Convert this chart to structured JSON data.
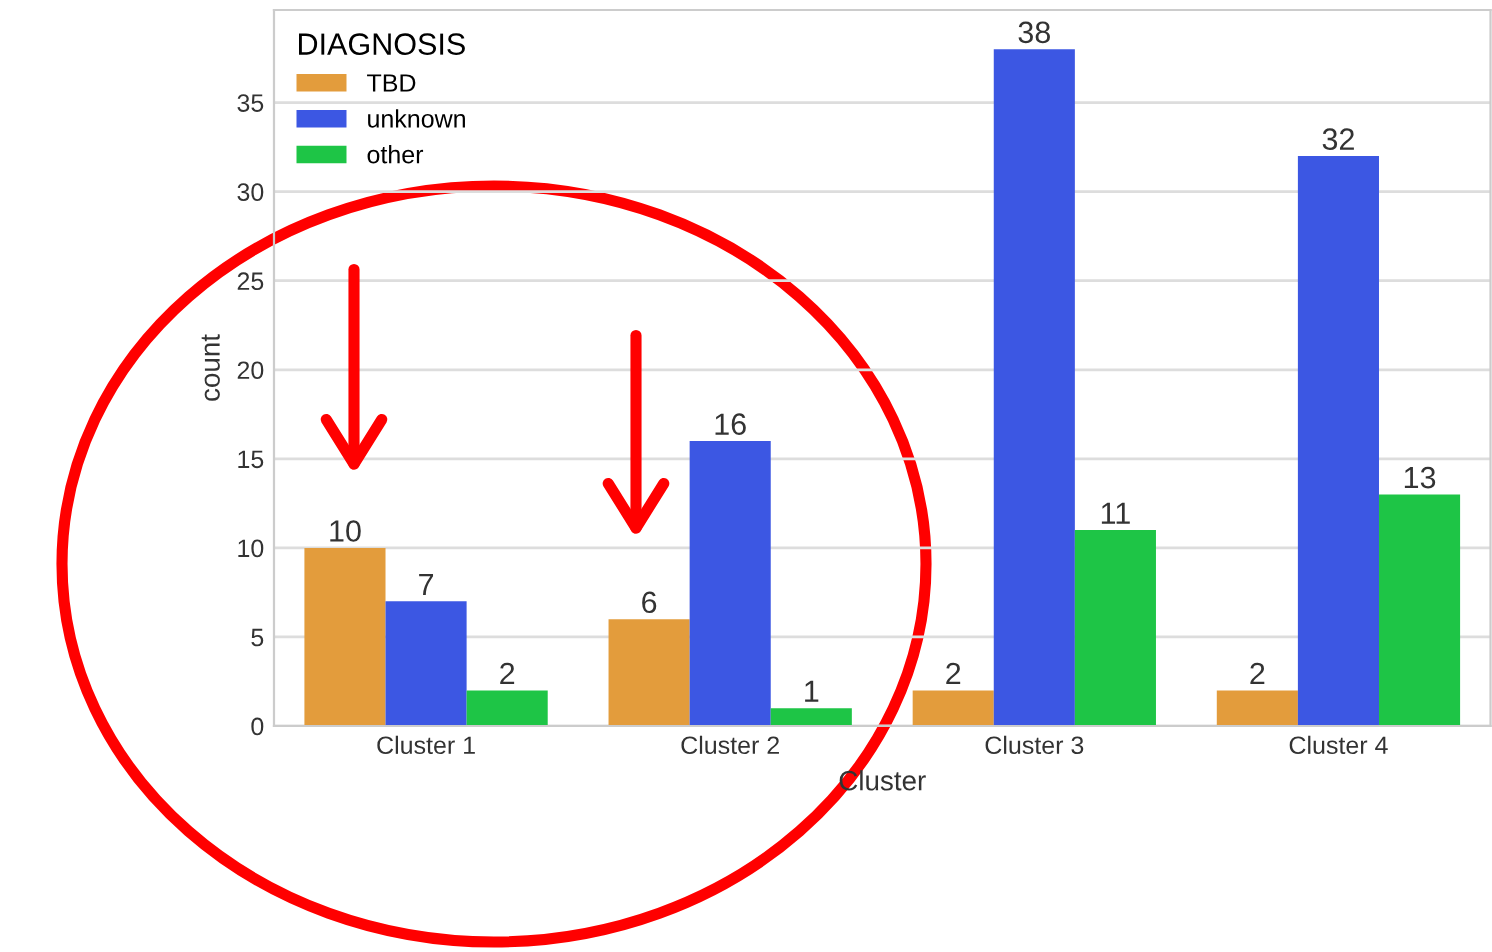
{
  "chart_data": {
    "type": "bar",
    "xlabel": "Cluster",
    "ylabel": "count",
    "legend_title": "DIAGNOSIS",
    "categories": [
      "Cluster 1",
      "Cluster 2",
      "Cluster 3",
      "Cluster 4"
    ],
    "series": [
      {
        "name": "TBD",
        "color": "#e39c3c",
        "values": [
          10,
          6,
          2,
          2
        ]
      },
      {
        "name": "unknown",
        "color": "#3c57e3",
        "values": [
          7,
          16,
          38,
          32
        ]
      },
      {
        "name": "other",
        "color": "#1ec546",
        "values": [
          2,
          1,
          11,
          13
        ]
      }
    ],
    "ylim": [
      0,
      40.2
    ],
    "yticks": [
      0,
      5,
      10,
      15,
      20,
      25,
      30,
      35
    ],
    "grid": "y",
    "legend": "top left",
    "data_labels": true
  }
}
